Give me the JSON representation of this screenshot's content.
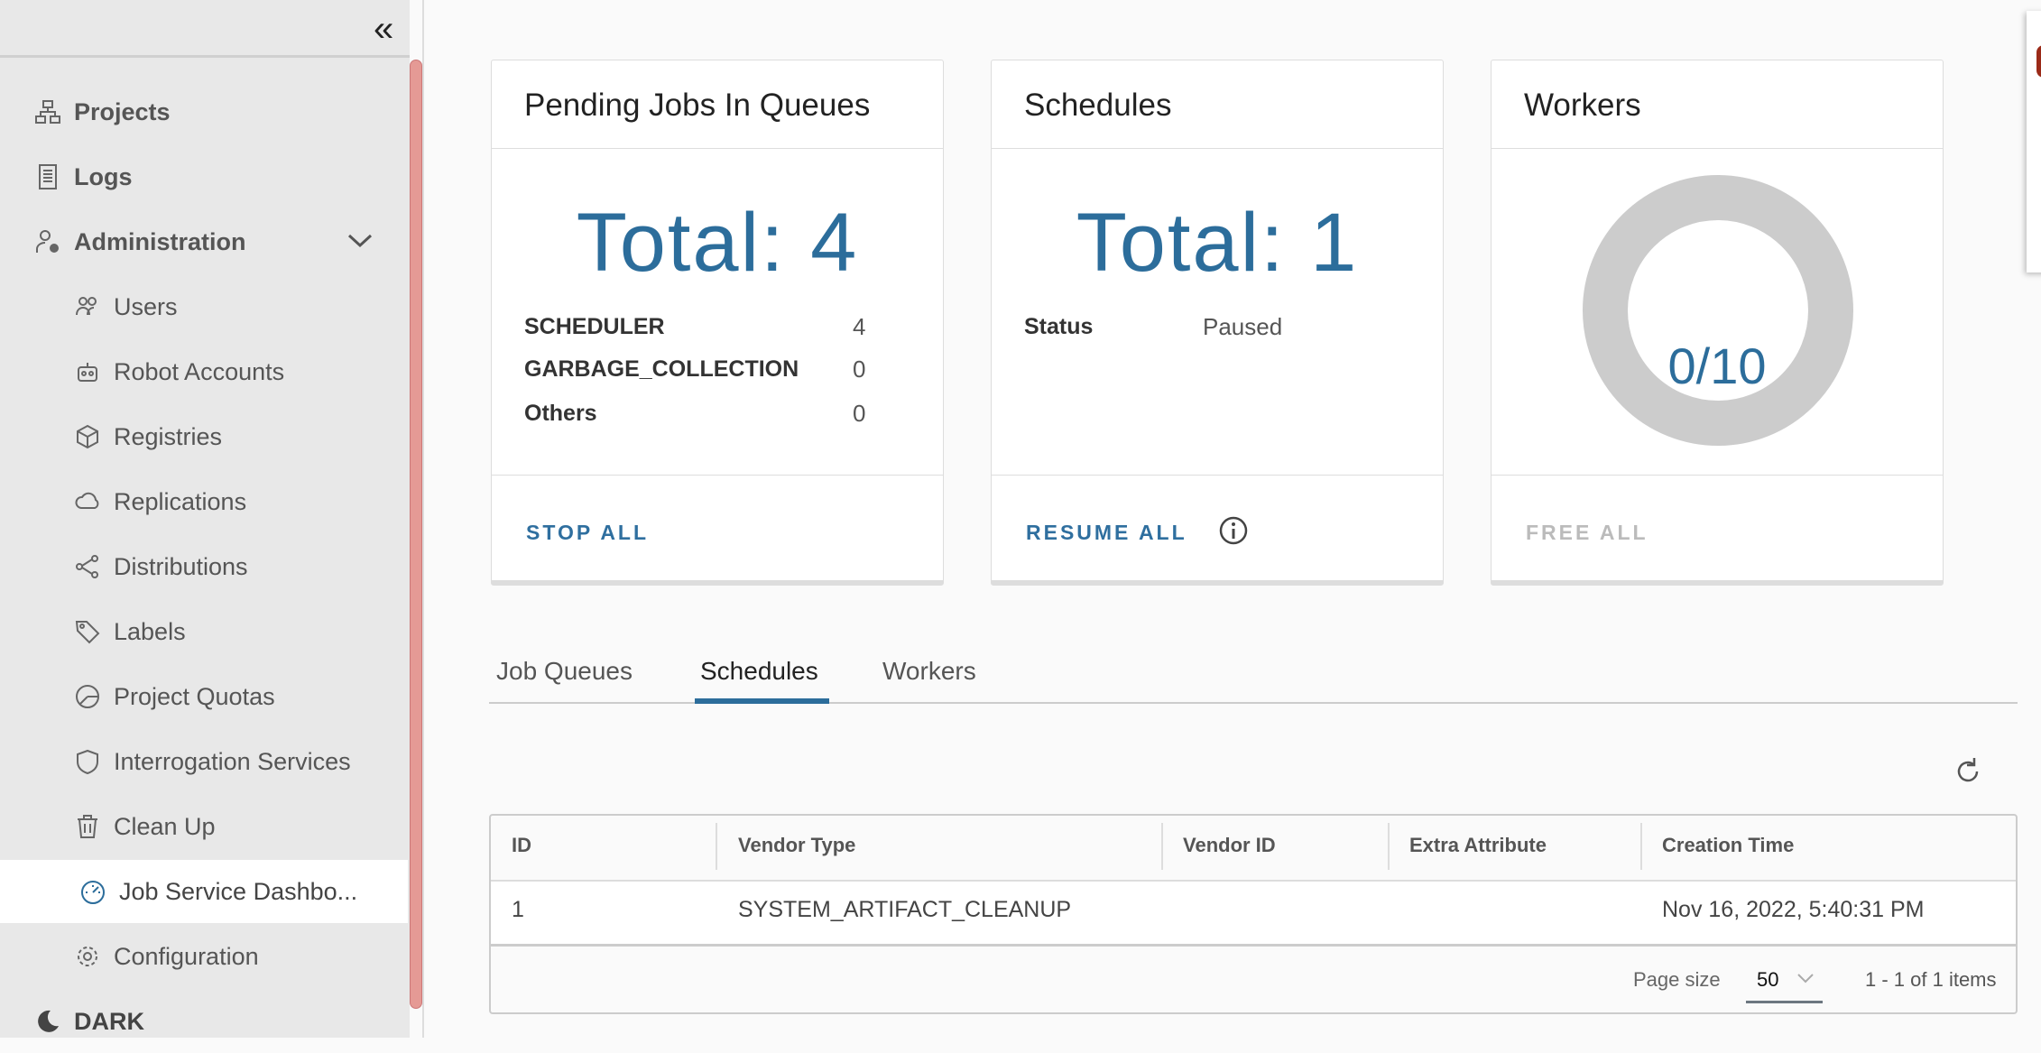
{
  "sidebar": {
    "top_items": [
      {
        "label": "Projects",
        "icon": "projects-icon"
      },
      {
        "label": "Logs",
        "icon": "logs-icon"
      },
      {
        "label": "Administration",
        "icon": "administration-icon"
      }
    ],
    "sub_items": [
      {
        "label": "Users"
      },
      {
        "label": "Robot Accounts"
      },
      {
        "label": "Registries"
      },
      {
        "label": "Replications"
      },
      {
        "label": "Distributions"
      },
      {
        "label": "Labels"
      },
      {
        "label": "Project Quotas"
      },
      {
        "label": "Interrogation Services"
      },
      {
        "label": "Clean Up"
      },
      {
        "label": "Job Service Dashbo..."
      },
      {
        "label": "Configuration"
      }
    ],
    "active": "Job Service Dashbo...",
    "theme_label": "DARK"
  },
  "cards": {
    "pending": {
      "title": "Pending Jobs In Queues",
      "total": "Total: 4",
      "rows": [
        {
          "label": "SCHEDULER",
          "value": "4"
        },
        {
          "label": "GARBAGE_COLLECTION",
          "value": "0"
        },
        {
          "label": "Others",
          "value": "0"
        }
      ],
      "action": "STOP ALL"
    },
    "schedules": {
      "title": "Schedules",
      "total": "Total: 1",
      "status_label": "Status",
      "status_value": "Paused",
      "action": "RESUME ALL"
    },
    "workers": {
      "title": "Workers",
      "usage": "0/10",
      "used_fraction": 0,
      "action": "FREE ALL"
    }
  },
  "tabs": [
    {
      "label": "Job Queues"
    },
    {
      "label": "Schedules",
      "active": true
    },
    {
      "label": "Workers"
    }
  ],
  "table": {
    "columns": [
      "ID",
      "Vendor Type",
      "Vendor ID",
      "Extra Attribute",
      "Creation Time"
    ],
    "rows": [
      [
        "1",
        "SYSTEM_ARTIFACT_CLEANUP",
        "",
        "",
        "Nov 16, 2022, 5:40:31 PM"
      ]
    ],
    "page_size_label": "Page size",
    "page_size": "50",
    "pagination": "1 - 1 of 1 items"
  },
  "colors": {
    "accent": "#2c6d9b",
    "sidebar_bg": "#e8e8e8",
    "scrollbar": "#e59a95",
    "donut": "#cccccc"
  }
}
